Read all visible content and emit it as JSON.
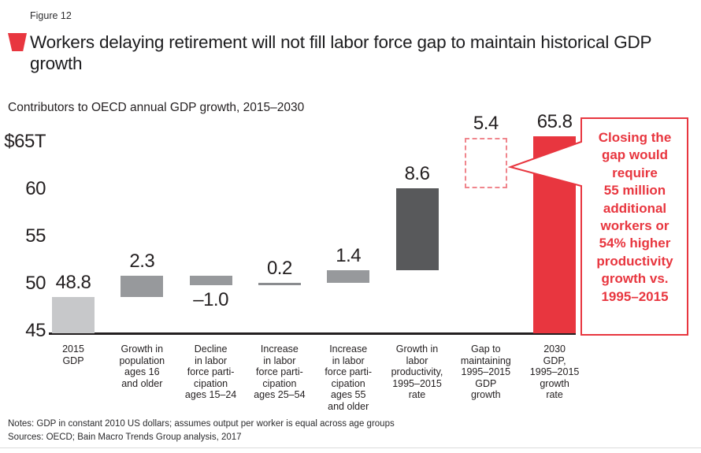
{
  "header": {
    "figure_label": "Figure 12",
    "title": "Workers delaying retirement will not fill labor force gap to maintain historical GDP growth",
    "subtitle": "Contributors to OECD annual GDP growth, 2015–2030"
  },
  "colors": {
    "accent_red": "#e8363f",
    "dashed_red": "#f0868d",
    "light_gray": "#c7c8ca",
    "mid_gray": "#97999c",
    "dark_gray": "#58595b",
    "thin_line_gray": "#8a8c8f",
    "text_dark": "#231f20"
  },
  "chart_data": {
    "type": "bar",
    "subtype": "waterfall",
    "title": "Contributors to OECD annual GDP growth, 2015–2030",
    "unit": "USD trillions",
    "y_axis": {
      "min": 45,
      "max": 65.8,
      "grid": false,
      "ticks": [
        {
          "value": 45,
          "label": "45"
        },
        {
          "value": 50,
          "label": "50"
        },
        {
          "value": 55,
          "label": "55"
        },
        {
          "value": 60,
          "label": "60"
        },
        {
          "value": 65,
          "label": "$65T"
        }
      ]
    },
    "bars": [
      {
        "key": "2015-gdp",
        "category_lines": [
          "2015",
          "GDP"
        ],
        "value": 48.8,
        "value_label": "48.8",
        "from": 45,
        "to": 48.8,
        "style": "light_gray",
        "value_label_position": "above"
      },
      {
        "key": "population-growth-16-older",
        "category_lines": [
          "Growth in",
          "population",
          "ages 16",
          "and older"
        ],
        "value": 2.3,
        "value_label": "2.3",
        "from": 48.8,
        "to": 51.1,
        "style": "mid_gray",
        "value_label_position": "above"
      },
      {
        "key": "lfp-decline-15-24",
        "category_lines": [
          "Decline",
          "in labor",
          "force parti-",
          "cipation",
          "ages 15–24"
        ],
        "value": -1.0,
        "value_label": "–1.0",
        "from": 51.1,
        "to": 50.1,
        "style": "mid_gray",
        "value_label_position": "below"
      },
      {
        "key": "lfp-increase-25-54",
        "category_lines": [
          "Increase",
          "in labor",
          "force parti-",
          "cipation",
          "ages 25–54"
        ],
        "value": 0.2,
        "value_label": "0.2",
        "from": 50.1,
        "to": 50.3,
        "style": "thin_line",
        "value_label_position": "above"
      },
      {
        "key": "lfp-increase-55-older",
        "category_lines": [
          "Increase",
          "in labor",
          "force parti-",
          "cipation",
          "ages 55",
          "and older"
        ],
        "value": 1.4,
        "value_label": "1.4",
        "from": 50.3,
        "to": 51.7,
        "style": "mid_gray",
        "value_label_position": "above"
      },
      {
        "key": "productivity-growth",
        "category_lines": [
          "Growth in",
          "labor",
          "productivity,",
          "1995–2015",
          "rate"
        ],
        "value": 8.6,
        "value_label": "8.6",
        "from": 51.7,
        "to": 60.3,
        "style": "dark_gray",
        "value_label_position": "above"
      },
      {
        "key": "gap-to-1995-2015-growth",
        "category_lines": [
          "Gap to",
          "maintaining",
          "1995–2015",
          "GDP",
          "growth"
        ],
        "value": 5.4,
        "value_label": "5.4",
        "from": 60.3,
        "to": 65.7,
        "style": "dashed",
        "value_label_position": "above"
      },
      {
        "key": "2030-gdp",
        "category_lines": [
          "2030",
          "GDP,",
          "1995–2015",
          "growth",
          "rate"
        ],
        "value": 65.8,
        "value_label": "65.8",
        "from": 45,
        "to": 65.8,
        "style": "red",
        "value_label_position": "above"
      }
    ],
    "callout": {
      "text": "Closing the gap would require 55 million additional workers or 54% higher productivity growth vs. 1995–2015",
      "lines": [
        "Closing the",
        "gap would",
        "require",
        "55 million",
        "additional",
        "workers or",
        "54% higher",
        "productivity",
        "growth vs.",
        "1995–2015"
      ]
    }
  },
  "footer": {
    "notes": "Notes: GDP in constant 2010 US dollars; assumes output per worker is equal across age groups",
    "sources": "Sources: OECD; Bain Macro Trends Group analysis, 2017"
  }
}
